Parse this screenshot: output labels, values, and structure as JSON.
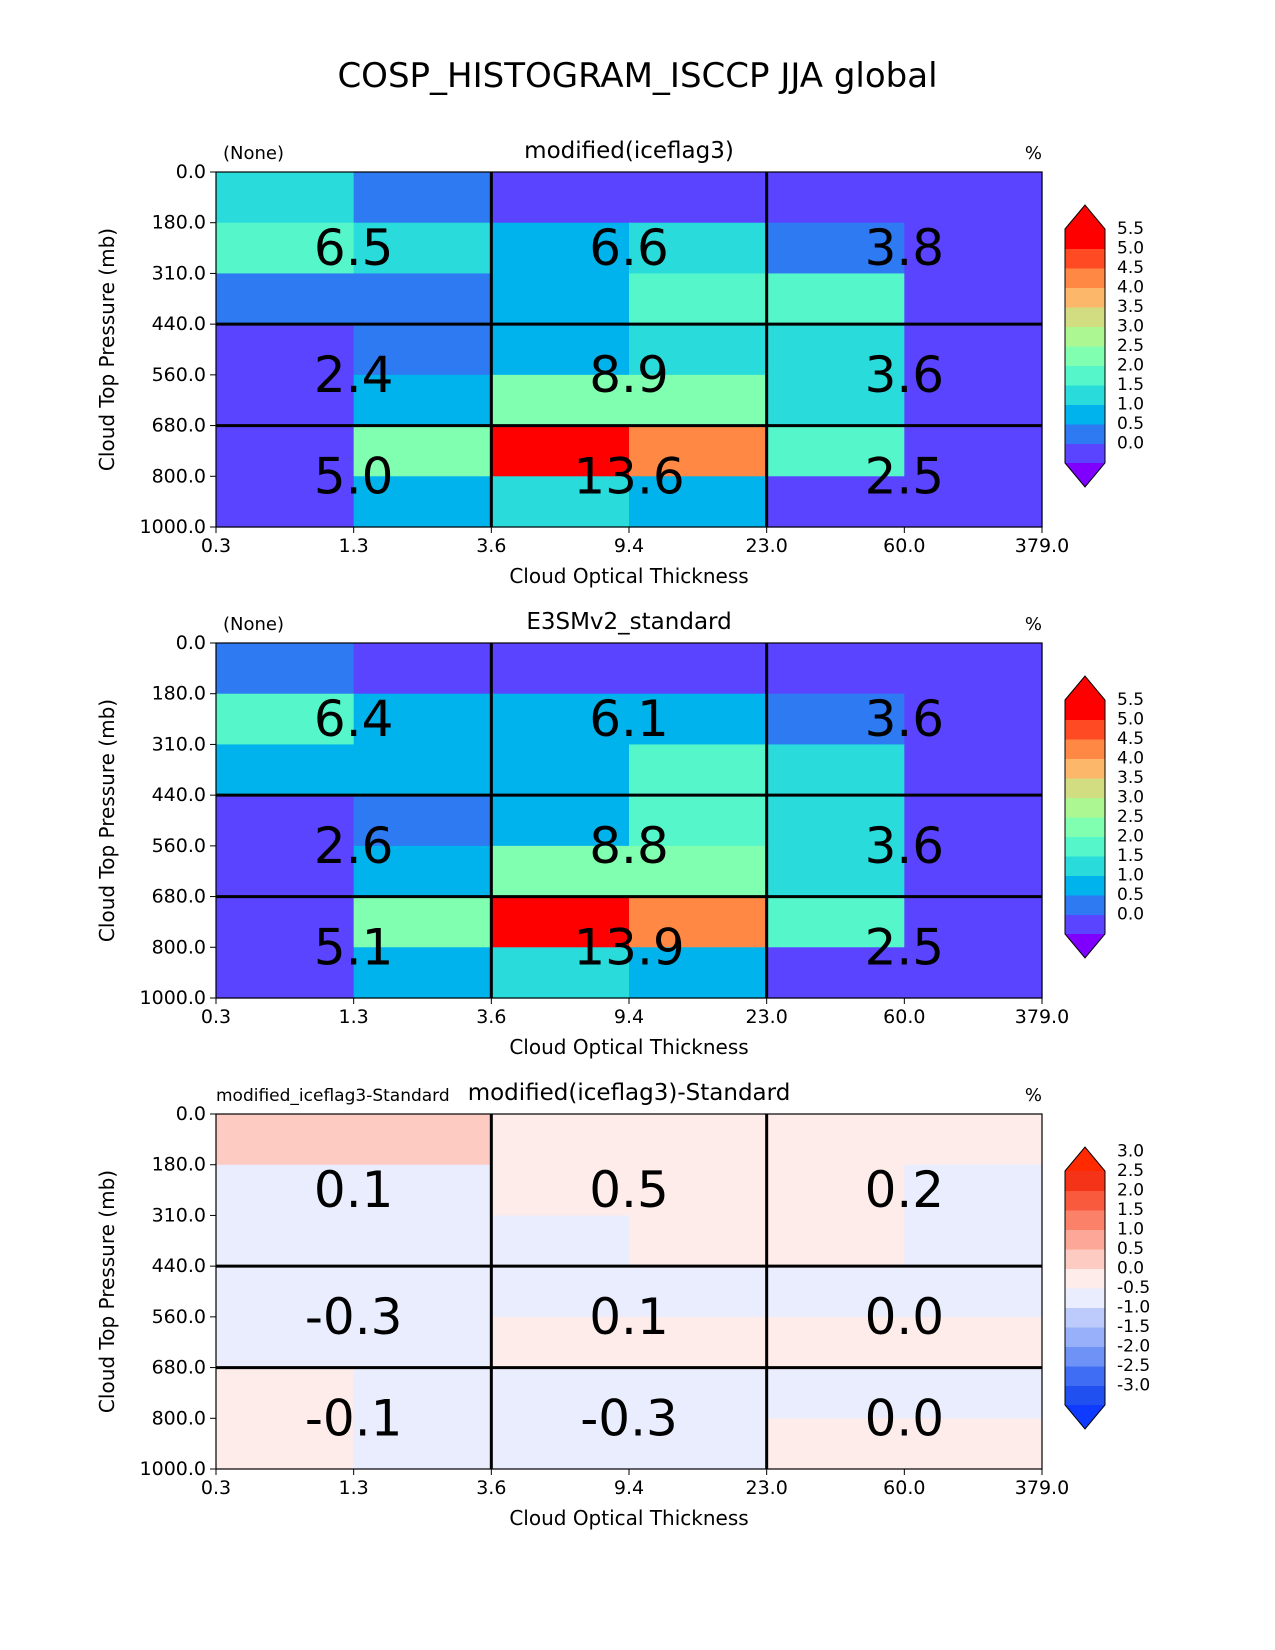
{
  "figure": {
    "title": "COSP_HISTOGRAM_ISCCP JJA global"
  },
  "chart_data": [
    {
      "type": "heatmap",
      "title": "modified(iceflag3)",
      "left_label": "(None)",
      "right_label": "%",
      "xlabel": "Cloud Optical Thickness",
      "ylabel": "Cloud Top Pressure (mb)",
      "x_ticks": [
        "0.3",
        "1.3",
        "3.6",
        "9.4",
        "23.0",
        "60.0",
        "379.0"
      ],
      "y_ticks": [
        "0.0",
        "180.0",
        "310.0",
        "440.0",
        "560.0",
        "680.0",
        "800.0",
        "1000.0"
      ],
      "cells": [
        [
          1.9,
          0.8,
          0.3,
          0.3,
          0.3,
          0.3
        ],
        [
          2.1,
          1.5,
          1.3,
          1.8,
          0.8,
          0.3
        ],
        [
          0.8,
          0.8,
          1.3,
          2.3,
          2.3,
          0.3
        ],
        [
          0.3,
          0.8,
          1.3,
          1.8,
          1.8,
          0.3
        ],
        [
          0.3,
          1.3,
          2.8,
          2.8,
          1.8,
          0.3
        ],
        [
          0.3,
          2.7,
          5.8,
          4.7,
          2.1,
          0.3
        ],
        [
          0.3,
          1.3,
          1.8,
          1.3,
          0.3,
          0.3
        ]
      ],
      "box_labels": [
        [
          "6.5",
          "6.6",
          "3.8"
        ],
        [
          "2.4",
          "8.9",
          "3.6"
        ],
        [
          "5.0",
          "13.6",
          "2.5"
        ]
      ],
      "colorbar": {
        "levels": [
          0.0,
          0.5,
          1.0,
          1.5,
          2.0,
          2.5,
          3.0,
          3.5,
          4.0,
          4.5,
          5.0,
          5.5
        ],
        "tick_labels": [
          "5.5",
          "5.0",
          "4.5",
          "4.0",
          "3.5",
          "3.0",
          "2.5",
          "2.0",
          "1.5",
          "1.0",
          "0.5",
          "0.0"
        ],
        "colors": [
          "#5a44ff",
          "#2d7af2",
          "#00b3ed",
          "#29dbdb",
          "#55f6c9",
          "#80ffb0",
          "#acf792",
          "#d2dc80",
          "#fcb76b",
          "#ff8844",
          "#ff4a24",
          "#ff0000"
        ],
        "under_color": "#8000ff",
        "over_color": "#ff0000"
      }
    },
    {
      "type": "heatmap",
      "title": "E3SMv2_standard",
      "left_label": "(None)",
      "right_label": "%",
      "xlabel": "Cloud Optical Thickness",
      "ylabel": "Cloud Top Pressure (mb)",
      "x_ticks": [
        "0.3",
        "1.3",
        "3.6",
        "9.4",
        "23.0",
        "60.0",
        "379.0"
      ],
      "y_ticks": [
        "0.0",
        "180.0",
        "310.0",
        "440.0",
        "560.0",
        "680.0",
        "800.0",
        "1000.0"
      ],
      "cells": [
        [
          0.8,
          0.3,
          0.3,
          0.3,
          0.3,
          0.3
        ],
        [
          2.1,
          1.3,
          1.3,
          1.3,
          0.8,
          0.3
        ],
        [
          1.3,
          1.3,
          1.3,
          2.1,
          1.8,
          0.3
        ],
        [
          0.3,
          0.8,
          1.3,
          2.1,
          1.8,
          0.3
        ],
        [
          0.3,
          1.3,
          2.8,
          2.8,
          1.8,
          0.3
        ],
        [
          0.3,
          2.8,
          5.8,
          4.7,
          2.1,
          0.3
        ],
        [
          0.3,
          1.3,
          1.8,
          1.3,
          0.3,
          0.3
        ]
      ],
      "box_labels": [
        [
          "6.4",
          "6.1",
          "3.6"
        ],
        [
          "2.6",
          "8.8",
          "3.6"
        ],
        [
          "5.1",
          "13.9",
          "2.5"
        ]
      ],
      "colorbar": {
        "levels": [
          0.0,
          0.5,
          1.0,
          1.5,
          2.0,
          2.5,
          3.0,
          3.5,
          4.0,
          4.5,
          5.0,
          5.5
        ],
        "tick_labels": [
          "5.5",
          "5.0",
          "4.5",
          "4.0",
          "3.5",
          "3.0",
          "2.5",
          "2.0",
          "1.5",
          "1.0",
          "0.5",
          "0.0"
        ],
        "colors": [
          "#5a44ff",
          "#2d7af2",
          "#00b3ed",
          "#29dbdb",
          "#55f6c9",
          "#80ffb0",
          "#acf792",
          "#d2dc80",
          "#fcb76b",
          "#ff8844",
          "#ff4a24",
          "#ff0000"
        ],
        "under_color": "#8000ff",
        "over_color": "#ff0000"
      }
    },
    {
      "type": "heatmap",
      "title": "modified(iceflag3)-Standard",
      "left_label": "modified_iceflag3-Standard",
      "right_label": "%",
      "xlabel": "Cloud Optical Thickness",
      "ylabel": "Cloud Top Pressure (mb)",
      "x_ticks": [
        "0.3",
        "1.3",
        "3.6",
        "9.4",
        "23.0",
        "60.0",
        "379.0"
      ],
      "y_ticks": [
        "0.0",
        "180.0",
        "310.0",
        "440.0",
        "560.0",
        "680.0",
        "800.0",
        "1000.0"
      ],
      "cells": [
        [
          0.7,
          0.7,
          0.2,
          0.2,
          0.2,
          0.2
        ],
        [
          -0.2,
          -0.2,
          0.2,
          0.2,
          0.2,
          -0.2
        ],
        [
          -0.2,
          -0.2,
          -0.2,
          0.2,
          0.2,
          -0.2
        ],
        [
          -0.2,
          -0.2,
          -0.2,
          -0.2,
          -0.2,
          -0.2
        ],
        [
          -0.2,
          -0.2,
          0.2,
          0.2,
          0.2,
          0.2
        ],
        [
          0.2,
          -0.2,
          -0.2,
          -0.2,
          -0.2,
          -0.2
        ],
        [
          0.2,
          -0.2,
          -0.2,
          -0.2,
          0.2,
          0.2
        ]
      ],
      "box_labels": [
        [
          "0.1",
          "0.5",
          "0.2"
        ],
        [
          "-0.3",
          "0.1",
          "0.0"
        ],
        [
          "-0.1",
          "-0.3",
          "0.0"
        ]
      ],
      "colorbar": {
        "levels": [
          -3.0,
          -2.5,
          -2.0,
          -1.5,
          -1.0,
          -0.5,
          0.0,
          0.5,
          1.0,
          1.5,
          2.0,
          2.5,
          3.0
        ],
        "tick_labels": [
          "3.0",
          "2.5",
          "2.0",
          "1.5",
          "1.0",
          "0.5",
          "0.0",
          "-0.5",
          "-1.0",
          "-1.5",
          "-2.0",
          "-2.5",
          "-3.0"
        ],
        "colors": [
          "#2050f0",
          "#3f6ef5",
          "#6f92f7",
          "#98b0fa",
          "#bccbfb",
          "#e9edfd",
          "#fdecea",
          "#fdcbc1",
          "#fca797",
          "#fb8268",
          "#f95a3e",
          "#f53318"
        ],
        "under_color": "#0e3bff",
        "over_color": "#ff2a00"
      }
    }
  ]
}
